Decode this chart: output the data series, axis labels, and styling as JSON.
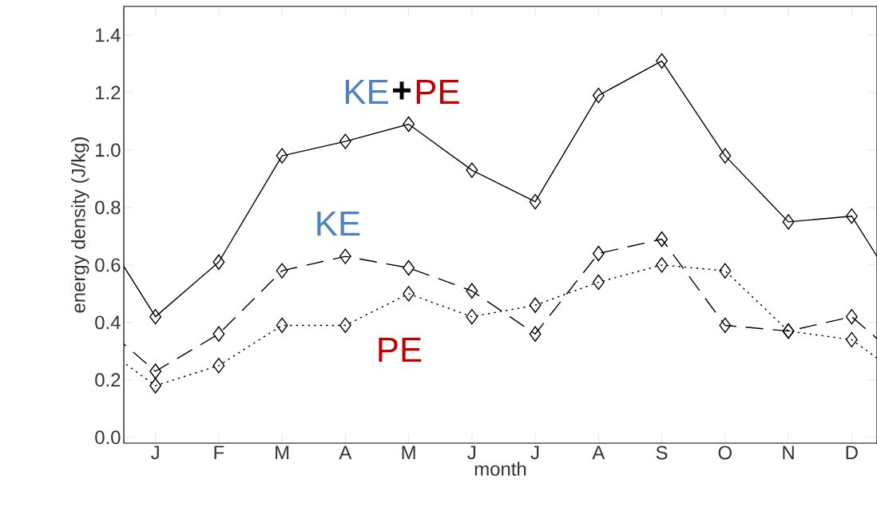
{
  "chart_data": {
    "type": "line",
    "xlabel": "month",
    "ylabel": "energy density (J/kg)",
    "ylim": [
      -0.02,
      1.5
    ],
    "categories": [
      "J",
      "F",
      "M",
      "A",
      "M",
      "J",
      "J",
      "A",
      "S",
      "O",
      "N",
      "D"
    ],
    "yticks": [
      {
        "value": 0,
        "label": "0.0"
      },
      {
        "value": 0.2,
        "label": "0.2"
      },
      {
        "value": 0.4,
        "label": "0.4"
      },
      {
        "value": 0.6,
        "label": "0.6"
      },
      {
        "value": 0.8,
        "label": "0.8"
      },
      {
        "value": 1.0,
        "label": "1.0"
      },
      {
        "value": 1.2,
        "label": "1.2"
      },
      {
        "value": 1.4,
        "label": "1.4"
      }
    ],
    "grid": false,
    "marker": "diamond",
    "series": [
      {
        "color": "#000000",
        "line_style": "solid",
        "values": [
          0.42,
          0.61,
          0.98,
          1.03,
          1.09,
          0.93,
          0.82,
          1.19,
          1.31,
          0.98,
          0.75,
          0.77
        ]
      },
      {
        "color": "#000000",
        "line_style": "dashed",
        "values": [
          0.23,
          0.36,
          0.58,
          0.63,
          0.59,
          0.51,
          0.36,
          0.64,
          0.69,
          0.39,
          0.37,
          0.42
        ]
      },
      {
        "color": "#000000",
        "line_style": "dotted",
        "values": [
          0.18,
          0.25,
          0.39,
          0.39,
          0.5,
          0.42,
          0.46,
          0.54,
          0.6,
          0.58,
          0.37,
          0.34
        ]
      }
    ],
    "annotations": [
      "KE",
      "+",
      "PE",
      "KE",
      "PE"
    ]
  }
}
